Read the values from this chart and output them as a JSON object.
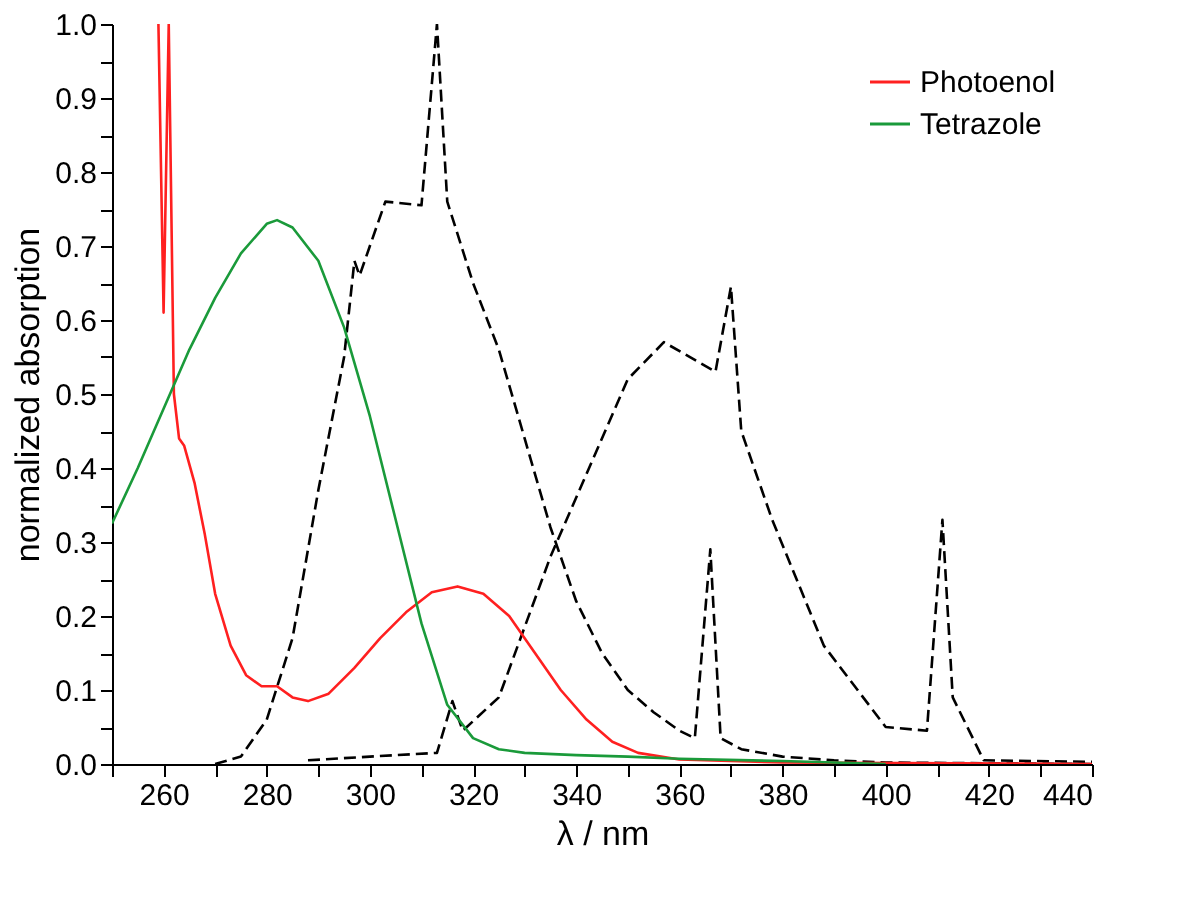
{
  "chart_data": {
    "type": "line",
    "xlabel": "λ / nm",
    "ylabel": "normalized absorption",
    "xlim": [
      250,
      440
    ],
    "ylim": [
      0,
      1.0
    ],
    "xticks": [
      {
        "value": 250,
        "label": null
      },
      260,
      {
        "value": 270,
        "label": null
      },
      280,
      {
        "value": 290,
        "label": null
      },
      300,
      {
        "value": 310,
        "label": null
      },
      320,
      {
        "value": 330,
        "label": null
      },
      340,
      {
        "value": 350,
        "label": null
      },
      360,
      {
        "value": 370,
        "label": null
      },
      380,
      {
        "value": 390,
        "label": null
      },
      400,
      {
        "value": 410,
        "label": null
      },
      420,
      {
        "value": 430,
        "label": null
      },
      440
    ],
    "yticks": [
      {
        "value": 0,
        "label": "0.0"
      },
      {
        "value": 0.05,
        "label": null
      },
      0.1,
      {
        "value": 0.15,
        "label": null
      },
      0.2,
      {
        "value": 0.25,
        "label": null
      },
      0.3,
      {
        "value": 0.35,
        "label": null
      },
      0.4,
      {
        "value": 0.45,
        "label": null
      },
      0.5,
      {
        "value": 0.55,
        "label": null
      },
      0.6,
      {
        "value": 0.65,
        "label": null
      },
      0.7,
      {
        "value": 0.75,
        "label": null
      },
      0.8,
      {
        "value": 0.85,
        "label": null
      },
      0.9,
      {
        "value": 0.95,
        "label": null
      },
      {
        "value": 1.0,
        "label": "1.0"
      }
    ],
    "grid": false,
    "legend": "top right",
    "marker": "none",
    "series": [
      {
        "color": "#000000",
        "line_style": "dashed",
        "x": [
          288,
          300,
          313,
          316,
          318,
          325,
          335,
          350,
          357,
          367,
          370,
          372,
          378,
          388,
          400,
          408,
          411,
          413,
          419,
          440
        ],
        "values": [
          0.005,
          0.01,
          0.015,
          0.085,
          0.045,
          0.09,
          0.28,
          0.52,
          0.57,
          0.53,
          0.645,
          0.45,
          0.33,
          0.16,
          0.05,
          0.045,
          0.33,
          0.09,
          0.005,
          0.003
        ]
      },
      {
        "color": "#000000",
        "line_style": "dashed",
        "x": [
          270,
          275,
          280,
          285,
          290,
          295,
          297,
          298,
          303,
          310,
          313,
          315,
          320,
          325,
          330,
          335,
          340,
          345,
          350,
          355,
          360,
          363,
          366,
          368,
          372,
          380,
          390,
          400,
          440
        ],
        "values": [
          0.0,
          0.01,
          0.06,
          0.17,
          0.37,
          0.55,
          0.68,
          0.66,
          0.76,
          0.755,
          1.0,
          0.76,
          0.65,
          0.56,
          0.44,
          0.32,
          0.22,
          0.15,
          0.1,
          0.07,
          0.045,
          0.035,
          0.29,
          0.035,
          0.02,
          0.01,
          0.005,
          0.002,
          0.0
        ]
      },
      {
        "name": "Photoenol",
        "color": "#ff2020",
        "line_style": "solid",
        "x": [
          259,
          260,
          261,
          262,
          263,
          264,
          266,
          268,
          270,
          273,
          276,
          279,
          282,
          285,
          288,
          292,
          297,
          302,
          307,
          312,
          317,
          322,
          327,
          332,
          337,
          342,
          347,
          352,
          360,
          380,
          440
        ],
        "values": [
          1.0,
          0.61,
          1.0,
          0.5,
          0.44,
          0.43,
          0.38,
          0.31,
          0.23,
          0.16,
          0.12,
          0.105,
          0.105,
          0.09,
          0.085,
          0.095,
          0.13,
          0.17,
          0.205,
          0.232,
          0.24,
          0.23,
          0.2,
          0.15,
          0.1,
          0.06,
          0.03,
          0.015,
          0.006,
          0.002,
          0.0
        ]
      },
      {
        "name": "Tetrazole",
        "color": "#1a9a3a",
        "line_style": "solid",
        "x": [
          250,
          255,
          260,
          265,
          270,
          275,
          280,
          282,
          285,
          290,
          295,
          300,
          305,
          310,
          315,
          320,
          325,
          330,
          340,
          350,
          360,
          380,
          400
        ],
        "values": [
          0.325,
          0.4,
          0.48,
          0.56,
          0.63,
          0.69,
          0.73,
          0.735,
          0.725,
          0.68,
          0.59,
          0.47,
          0.33,
          0.19,
          0.08,
          0.035,
          0.02,
          0.015,
          0.012,
          0.01,
          0.007,
          0.004,
          0.0
        ]
      }
    ]
  }
}
